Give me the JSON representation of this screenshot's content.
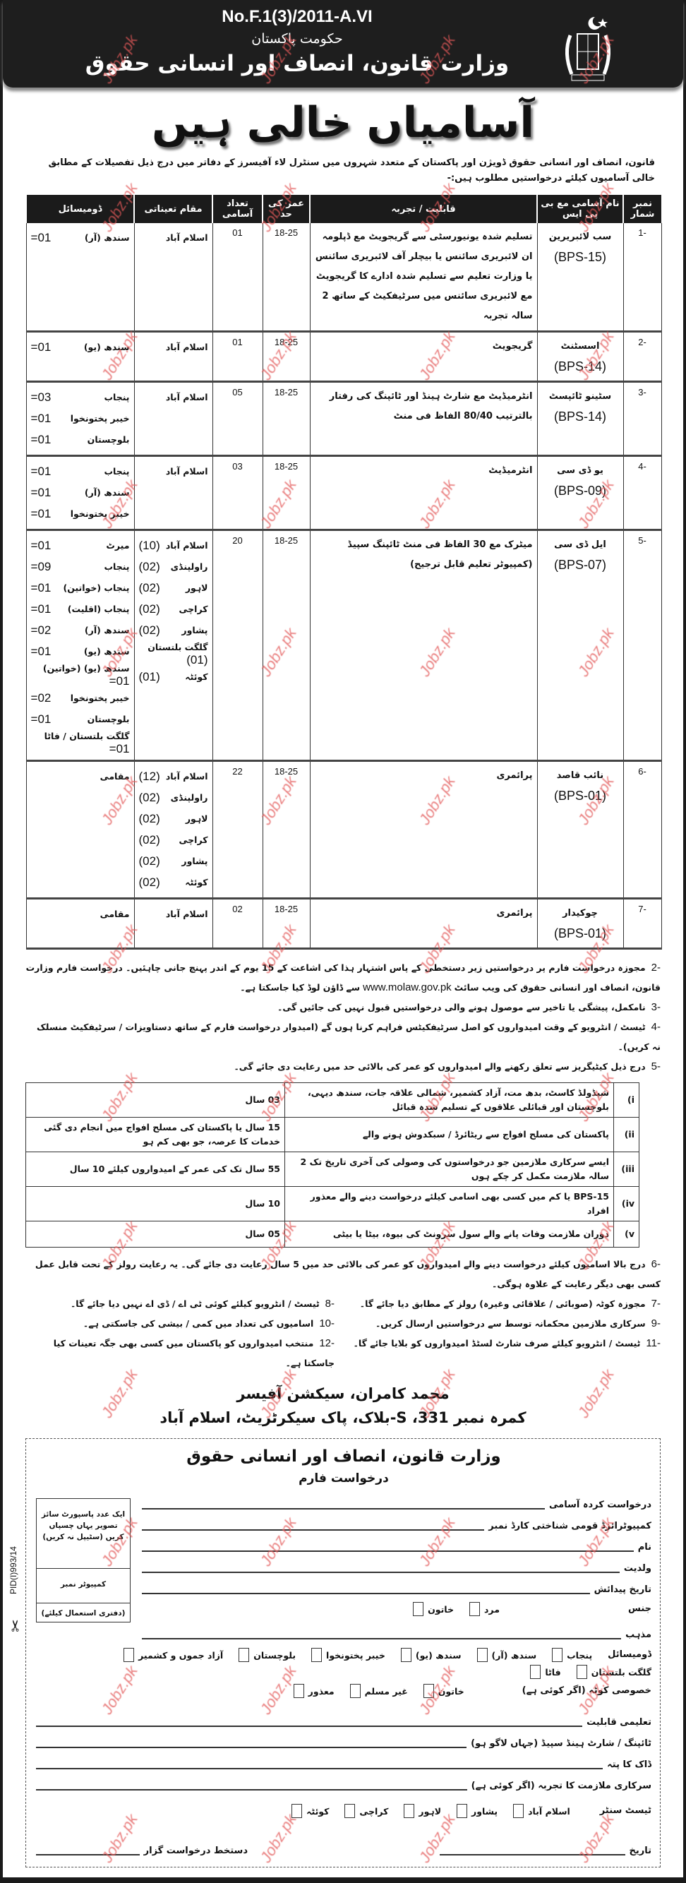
{
  "header": {
    "ref_no": "No.F.1(3)/2011-A.VI",
    "govt": "حکومت پاکستان",
    "ministry": "وزارت قانون، انصاف اور انسانی حقوق",
    "emblem_icon": "pakistan-state-emblem"
  },
  "title": "آسامیاں خالی ہیں",
  "intro": "قانون، انصاف اور انسانی حقوق ڈویژن اور پاکستان کے متعدد شہروں میں سنٹرل لاء آفیسرز کے دفاتر میں درج ذیل تفصیلات کے مطابق خالی آسامیوں کیلئے درخواستیں مطلوب ہیں:-",
  "table": {
    "headers": [
      "نمبر شمار",
      "نام آسامی مع بی پی ایس",
      "قابلیت / تجربہ",
      "عمر کی حد",
      "تعداد آسامی",
      "مقام تعیناتی",
      "ڈومیسائل"
    ],
    "rows": [
      {
        "no": "-1",
        "post": "سب لائبریرین",
        "bps": "(BPS-15)",
        "qualification": "تسلیم شدہ یونیورسٹی سے گریجویٹ مع ڈپلومہ ان لائبریری سائنس یا بیچلر آف لائبریری سائنس یا وزارت تعلیم سے تسلیم شدہ ادارے کا گریجویٹ مع لائبریری سائنس میں سرٹیفکیٹ کے ساتھ 2 سالہ تجربہ",
        "age": "18-25",
        "count": "01",
        "posting": [
          {
            "city": "اسلام آباد",
            "n": ""
          }
        ],
        "domicile": [
          {
            "name": "سندھ (آر)",
            "n": "01="
          }
        ]
      },
      {
        "no": "-2",
        "post": "اسسٹنٹ",
        "bps": "(BPS-14)",
        "qualification": "گریجویٹ",
        "age": "18-25",
        "count": "01",
        "posting": [
          {
            "city": "اسلام آباد",
            "n": ""
          }
        ],
        "domicile": [
          {
            "name": "سندھ (یو)",
            "n": "01="
          }
        ]
      },
      {
        "no": "-3",
        "post": "سٹینو ٹائپسٹ",
        "bps": "(BPS-14)",
        "qualification": "انٹرمیڈیٹ مع شارٹ ہینڈ اور ٹائپنگ کی رفتار بالترتیب 80/40 الفاظ فی منٹ",
        "age": "18-25",
        "count": "05",
        "posting": [
          {
            "city": "اسلام آباد",
            "n": ""
          }
        ],
        "domicile": [
          {
            "name": "پنجاب",
            "n": "03="
          },
          {
            "name": "خیبر پختونخوا",
            "n": "01="
          },
          {
            "name": "بلوچستان",
            "n": "01="
          }
        ]
      },
      {
        "no": "-4",
        "post": "یو ڈی سی",
        "bps": "(BPS-09)",
        "qualification": "انٹرمیڈیٹ",
        "age": "18-25",
        "count": "03",
        "posting": [
          {
            "city": "اسلام آباد",
            "n": ""
          }
        ],
        "domicile": [
          {
            "name": "پنجاب",
            "n": "01="
          },
          {
            "name": "سندھ (آر)",
            "n": "01="
          },
          {
            "name": "خیبر پختونخوا",
            "n": "01="
          }
        ]
      },
      {
        "no": "-5",
        "post": "ایل ڈی سی",
        "bps": "(BPS-07)",
        "qualification": "میٹرک مع 30 الفاظ فی منٹ ٹائپنگ سپیڈ (کمپیوٹر تعلیم قابل ترجیح)",
        "age": "18-25",
        "count": "20",
        "posting": [
          {
            "city": "اسلام آباد",
            "n": "(10)"
          },
          {
            "city": "راولپنڈی",
            "n": "(02)"
          },
          {
            "city": "لاہور",
            "n": "(02)"
          },
          {
            "city": "کراچی",
            "n": "(02)"
          },
          {
            "city": "پشاور",
            "n": "(02)"
          },
          {
            "city": "گلگت بلتستان",
            "n": "(01)"
          },
          {
            "city": "کوئٹہ",
            "n": "(01)"
          }
        ],
        "domicile": [
          {
            "name": "میرٹ",
            "n": "01="
          },
          {
            "name": "پنجاب",
            "n": "09="
          },
          {
            "name": "پنجاب (خواتین)",
            "n": "01="
          },
          {
            "name": "پنجاب (اقلیت)",
            "n": "01="
          },
          {
            "name": "سندھ (آر)",
            "n": "02="
          },
          {
            "name": "سندھ (یو)",
            "n": "01="
          },
          {
            "name": "سندھ (یو) (خواتین)",
            "n": "01="
          },
          {
            "name": "خیبر پختونخوا",
            "n": "02="
          },
          {
            "name": "بلوچستان",
            "n": "01="
          },
          {
            "name": "گلگت بلتستان / فاٹا",
            "n": "01="
          }
        ]
      },
      {
        "no": "-6",
        "post": "نائب قاصد",
        "bps": "(BPS-01)",
        "qualification": "پرائمری",
        "age": "18-25",
        "count": "22",
        "posting": [
          {
            "city": "اسلام آباد",
            "n": "(12)"
          },
          {
            "city": "راولپنڈی",
            "n": "(02)"
          },
          {
            "city": "لاہور",
            "n": "(02)"
          },
          {
            "city": "کراچی",
            "n": "(02)"
          },
          {
            "city": "پشاور",
            "n": "(02)"
          },
          {
            "city": "کوئٹہ",
            "n": "(02)"
          }
        ],
        "domicile": [
          {
            "name": "مقامی",
            "n": ""
          }
        ]
      },
      {
        "no": "-7",
        "post": "چوکیدار",
        "bps": "(BPS-01)",
        "qualification": "پرائمری",
        "age": "18-25",
        "count": "02",
        "posting": [
          {
            "city": "اسلام آباد",
            "n": ""
          }
        ],
        "domicile": [
          {
            "name": "مقامی",
            "n": ""
          }
        ]
      }
    ]
  },
  "notes": {
    "n2_label": "-2",
    "n2": "مجوزہ درخواست فارم پر درخواستیں زیر دستخطی کے پاس اشتہار ہذا کی اشاعت کے 15 یوم کے اندر پہنچ جانی چاہئیں۔ درخواست فارم وزارت قانون، انصاف اور انسانی حقوق کی ویب سائٹ",
    "n2_url": "www.molaw.gov.pk",
    "n2_tail": "سے ڈاؤن لوڈ کیا جاسکتا ہے۔",
    "n3_label": "-3",
    "n3": "نامکمل، پیشگی یا تاخیر سے موصول ہونے والی درخواستیں قبول نہیں کی جائیں گی۔",
    "n4_label": "-4",
    "n4": "ٹیسٹ / انٹرویو کے وقت امیدواروں کو اصل سرٹیفکیٹس فراہم کرنا ہوں گے (امیدوار درخواست فارم کے ساتھ دستاویزات / سرٹیفکیٹ منسلک نہ کریں)۔",
    "n5_label": "-5",
    "n5": "درج ذیل کیٹیگریز سے تعلق رکھنے والے امیدواروں کو عمر کی بالائی حد میں رعایت دی جائے گی۔",
    "concessions": [
      {
        "no": "i)",
        "category": "شیڈولڈ کاسٹ، بدھ مت، آزاد کشمیر، شمالی علاقہ جات، سندھ دیہی، بلوچستان اور قبائلی علاقوں کے تسلیم شدہ قبائل",
        "relax": "03 سال"
      },
      {
        "no": "ii)",
        "category": "پاکستان کی مسلح افواج سے ریٹائرڈ / سبکدوش ہونے والے",
        "relax": "15 سال یا پاکستان کی مسلح افواج میں انجام دی گئی خدمات کا عرصہ، جو بھی کم ہو"
      },
      {
        "no": "iii)",
        "category": "ایسے سرکاری ملازمین جو درخواستوں کی وصولی کی آخری تاریخ تک 2 سالہ ملازمت مکمل کر چکے ہوں",
        "relax": "55 سال تک کی عمر کے امیدواروں کیلئے 10 سال"
      },
      {
        "no": "iv)",
        "category": "BPS-15 یا کم میں کسی بھی اسامی کیلئے درخواست دینے والے معذور افراد",
        "relax": "10 سال"
      },
      {
        "no": "v)",
        "category": "دوران ملازمت وفات پانے والے سول سرونٹ کی بیوہ، بیٹا یا بیٹی",
        "relax": "05 سال"
      }
    ],
    "n6_label": "-6",
    "n6": "درج بالا اسامیوں کیلئے درخواست دینے والے امیدواروں کو عمر کی بالائی حد میں 5 سال رعایت دی جائے گی۔ یہ رعایت رولز کے تحت قابل عمل کسی بھی دیگر رعایت کے علاوہ ہوگی۔",
    "n7_label": "-7",
    "n7": "مجوزہ کوٹہ (صوبائی / علاقائی وغیرہ) رولز کے مطابق دیا جائے گا۔",
    "n8_label": "-8",
    "n8": "ٹیسٹ / انٹرویو کیلئے کوئی ٹی اے / ڈی اے نہیں دیا جائے گا۔",
    "n9_label": "-9",
    "n9": "سرکاری ملازمین محکمانہ توسط سے درخواستیں ارسال کریں۔",
    "n10_label": "-10",
    "n10": "اسامیوں کی تعداد میں کمی / بیشی کی جاسکتی ہے۔",
    "n11_label": "-11",
    "n11": "ٹیسٹ / انٹرویو کیلئے صرف شارٹ لسٹڈ امیدواروں کو بلایا جائے گا۔",
    "n12_label": "-12",
    "n12": "منتخب امیدواروں کو پاکستان میں کسی بھی جگہ تعینات کیا جاسکتا ہے۔"
  },
  "signature": {
    "name": "محمد کامران، سیکشن آفیسر",
    "address": "کمرہ نمبر 331، S-بلاک، پاک سیکرٹریٹ، اسلام آباد"
  },
  "form": {
    "title": "وزارت قانون، انصاف اور انسانی حقوق",
    "subtitle": "درخواست فارم",
    "photo_text": "ایک عدد پاسپورٹ سائز تصویر یہاں چسپاں کریں (سٹیپل نہ کریں)",
    "computer_no": "کمپیوٹر نمبر",
    "office_use": "(دفتری استعمال کیلئے)",
    "post_applied": "درخواست کردہ آسامی",
    "cnic": "کمپیوٹرائزڈ قومی شناختی کارڈ نمبر",
    "name": "نام",
    "father": "ولدیت",
    "dob": "تاریخ پیدائش",
    "gender": "جنس",
    "gender_options": [
      "مرد",
      "خاتون"
    ],
    "religion": "مذہب",
    "domicile": "ڈومیسائل",
    "domicile_options": [
      "پنجاب",
      "سندھ (آر)",
      "سندھ (یو)",
      "خیبر پختونخوا",
      "بلوچستان",
      "آزاد جموں و کشمیر",
      "گلگت بلتستان",
      "فاٹا"
    ],
    "quota": "خصوصی کوٹہ (اگر کوئی ہے)",
    "quota_options": [
      "خاتون",
      "غیر مسلم",
      "معذور"
    ],
    "education": "تعلیمی قابلیت",
    "typing": "ٹائپنگ / شارٹ ہینڈ سپیڈ (جہاں لاگو ہو)",
    "postal": "ڈاک کا پتہ",
    "govt_exp": "سرکاری ملازمت کا تجربہ (اگر کوئی ہے)",
    "test_center": "ٹیسٹ سنٹر",
    "test_center_options": [
      "اسلام آباد",
      "پشاور",
      "لاہور",
      "کراچی",
      "کوئٹہ"
    ],
    "date": "تاریخ",
    "signature": "دستخط درخواست گزار"
  },
  "pid": "PID(I)993/14",
  "watermark": "Jobz.pk",
  "colors": {
    "watermark": "#e35a5a",
    "header_bg": "#1e1e1e"
  }
}
